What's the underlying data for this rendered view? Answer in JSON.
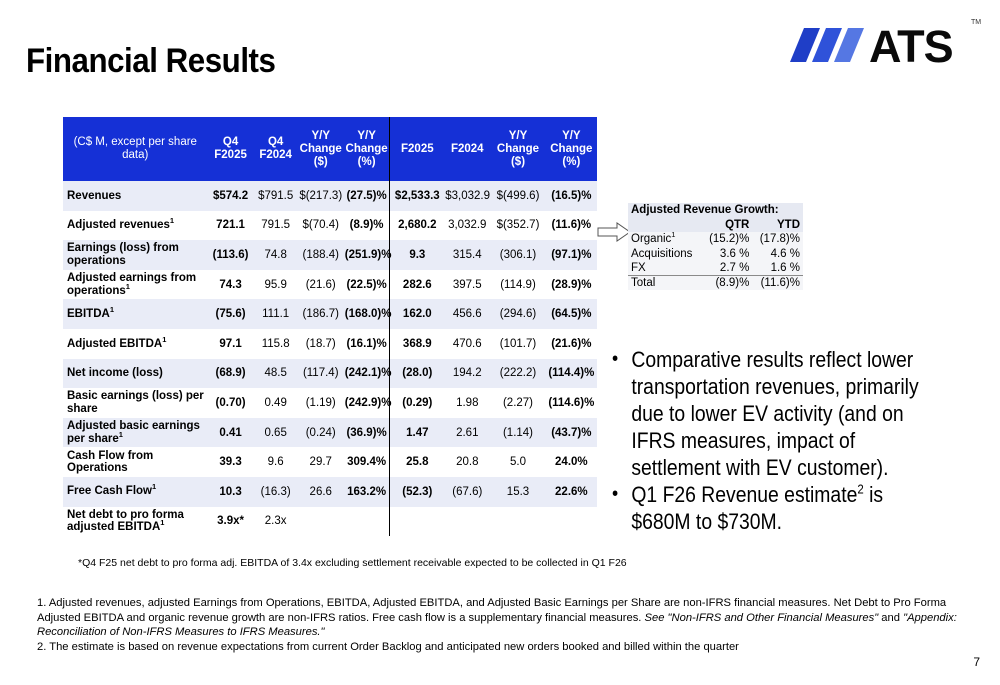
{
  "page": {
    "title": "Financial Results",
    "page_number": "7"
  },
  "logo": {
    "text": "ATS",
    "trademark": "TM",
    "brand_color": "#1a3fd6",
    "stripe_color": "#1f3ec7"
  },
  "table": {
    "header": {
      "description": "(C$ M, except per share data)",
      "columns": [
        "Q4 F2025",
        "Q4 F2024",
        "Y/Y Change ($)",
        "Y/Y Change (%)",
        "F2025",
        "F2024",
        "Y/Y Change ($)",
        "Y/Y Change (%)"
      ]
    },
    "rows": [
      {
        "label": "Revenues",
        "sup": "",
        "values": [
          "$574.2",
          "$791.5",
          "$(217.3)",
          "(27.5)%",
          "$2,533.3",
          "$3,032.9",
          "$(499.6)",
          "(16.5)%"
        ]
      },
      {
        "label": "Adjusted revenues",
        "sup": "1",
        "values": [
          "721.1",
          "791.5",
          "$(70.4)",
          "(8.9)%",
          "2,680.2",
          "3,032.9",
          "$(352.7)",
          "(11.6)%"
        ]
      },
      {
        "label": "Earnings (loss) from operations",
        "sup": "",
        "values": [
          "(113.6)",
          "74.8",
          "(188.4)",
          "(251.9)%",
          "9.3",
          "315.4",
          "(306.1)",
          "(97.1)%"
        ]
      },
      {
        "label": "Adjusted earnings from operations",
        "sup": "1",
        "values": [
          "74.3",
          "95.9",
          "(21.6)",
          "(22.5)%",
          "282.6",
          "397.5",
          "(114.9)",
          "(28.9)%"
        ]
      },
      {
        "label": "EBITDA",
        "sup": "1",
        "values": [
          "(75.6)",
          "111.1",
          "(186.7)",
          "(168.0)%",
          "162.0",
          "456.6",
          "(294.6)",
          "(64.5)%"
        ]
      },
      {
        "label": "Adjusted EBITDA",
        "sup": "1",
        "values": [
          "97.1",
          "115.8",
          "(18.7)",
          "(16.1)%",
          "368.9",
          "470.6",
          "(101.7)",
          "(21.6)%"
        ]
      },
      {
        "label": "Net income (loss)",
        "sup": "",
        "values": [
          "(68.9)",
          "48.5",
          "(117.4)",
          "(242.1)%",
          "(28.0)",
          "194.2",
          "(222.2)",
          "(114.4)%"
        ]
      },
      {
        "label": "Basic earnings (loss) per share",
        "sup": "",
        "values": [
          "(0.70)",
          "0.49",
          "(1.19)",
          "(242.9)%",
          "(0.29)",
          "1.98",
          "(2.27)",
          "(114.6)%"
        ]
      },
      {
        "label": "Adjusted basic earnings per share",
        "sup": "1",
        "values": [
          "0.41",
          "0.65",
          "(0.24)",
          "(36.9)%",
          "1.47",
          "2.61",
          "(1.14)",
          "(43.7)%"
        ]
      },
      {
        "label": "Cash Flow from Operations",
        "sup": "",
        "values": [
          "39.3",
          "9.6",
          "29.7",
          "309.4%",
          "25.8",
          "20.8",
          "5.0",
          "24.0%"
        ]
      },
      {
        "label": "Free Cash Flow",
        "sup": "1",
        "values": [
          "10.3",
          "(16.3)",
          "26.6",
          "163.2%",
          "(52.3)",
          "(67.6)",
          "15.3",
          "22.6%"
        ]
      },
      {
        "label": "Net debt to pro forma adjusted EBITDA",
        "sup": "1",
        "values": [
          "3.9x*",
          "2.3x",
          "",
          "",
          "",
          "",
          "",
          ""
        ]
      }
    ],
    "footnote": "*Q4 F25 net debt to pro forma adj. EBITDA of 3.4x excluding settlement receivable expected to be collected in Q1 F26"
  },
  "revenue_growth": {
    "title": "Adjusted Revenue Growth:",
    "col_qtr": "QTR",
    "col_ytd": "YTD",
    "rows": [
      {
        "label": "Organic",
        "sup": "1",
        "qtr": "(15.2)%",
        "ytd": "(17.8)%"
      },
      {
        "label": "Acquisitions",
        "sup": "",
        "qtr": "3.6 %",
        "ytd": "4.6 %"
      },
      {
        "label": "FX",
        "sup": "",
        "qtr": "2.7 %",
        "ytd": "1.6 %"
      },
      {
        "label": "Total",
        "sup": "",
        "qtr": "(8.9)%",
        "ytd": "(11.6)%"
      }
    ]
  },
  "bullets": [
    {
      "text": "Comparative results reflect lower transportation revenues, primarily due to lower EV activity (and on IFRS measures,  impact of settlement with EV customer)."
    },
    {
      "text_before": "Q1 F26 Revenue estimate",
      "sup": "2",
      "text_after": " is $680M to $730M."
    }
  ],
  "footnotes": {
    "note1_plain": "1. Adjusted revenues, adjusted Earnings from Operations, EBITDA, Adjusted EBITDA, and Adjusted Basic Earnings per Share are non-IFRS financial measures. Net Debt to Pro Forma Adjusted EBITDA and organic revenue growth are non-IFRS ratios. Free cash flow is a supplementary financial measures. ",
    "note1_italic_a": "See \"Non-IFRS and Other Financial Measures\"",
    "note1_and": " and ",
    "note1_italic_b": "\"Appendix: Reconciliation of Non-IFRS Measures to IFRS Measures.\"",
    "note2": "2. The estimate is based on revenue expectations from current Order Backlog and anticipated new orders booked and billed within the quarter"
  },
  "colors": {
    "header_blue": "#1530d6",
    "row_shade": "#e9ecf7"
  }
}
